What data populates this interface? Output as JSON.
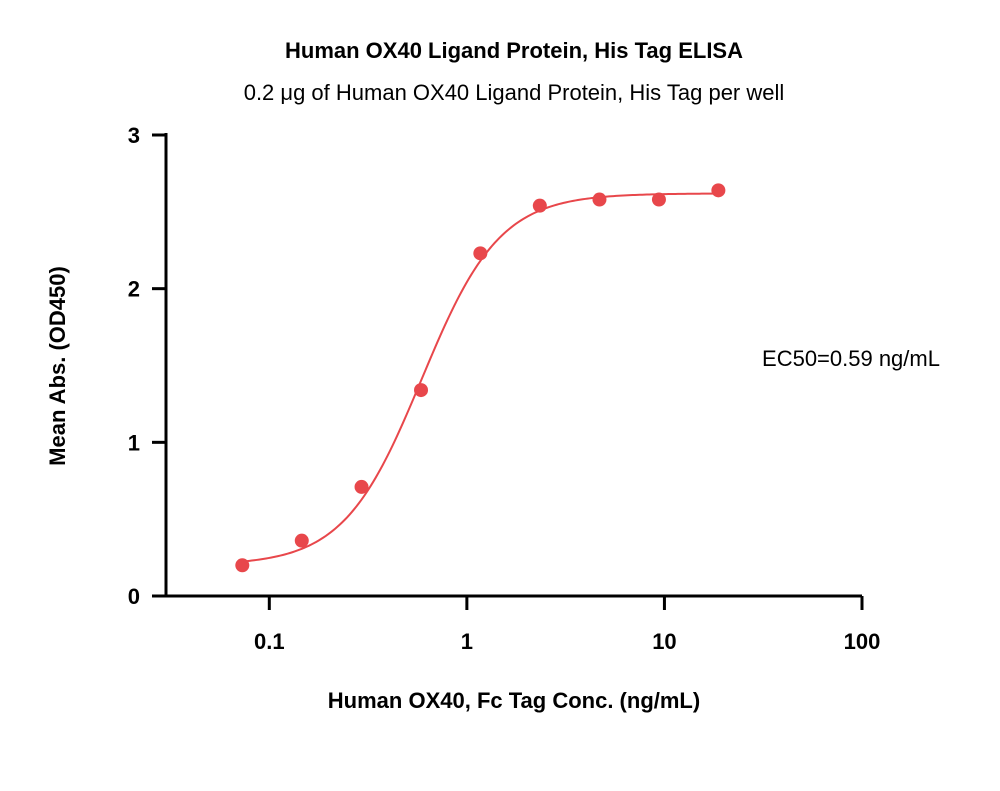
{
  "chart_data": {
    "type": "scatter",
    "title": "Human OX40 Ligand Protein, His Tag ELISA",
    "subtitle": "0.2 μg of Human OX40 Ligand Protein, His Tag per well",
    "xlabel": "Human OX40, Fc Tag Conc. (ng/mL)",
    "ylabel": "Mean Abs. (OD450)",
    "x_scale": "log",
    "xlim": [
      0.03,
      100
    ],
    "ylim": [
      0,
      3
    ],
    "x_ticks": [
      0.1,
      1,
      10,
      100
    ],
    "x_tick_labels": [
      "0.1",
      "1",
      "10",
      "100"
    ],
    "y_ticks": [
      0,
      1,
      2,
      3
    ],
    "y_tick_labels": [
      "0",
      "1",
      "2",
      "3"
    ],
    "grid": false,
    "series": [
      {
        "color": "#e8474b",
        "points": [
          {
            "x": 0.073,
            "y": 0.2
          },
          {
            "x": 0.146,
            "y": 0.36
          },
          {
            "x": 0.293,
            "y": 0.71
          },
          {
            "x": 0.586,
            "y": 1.34
          },
          {
            "x": 1.17,
            "y": 2.23
          },
          {
            "x": 2.34,
            "y": 2.54
          },
          {
            "x": 4.69,
            "y": 2.58
          },
          {
            "x": 9.38,
            "y": 2.58
          },
          {
            "x": 18.75,
            "y": 2.64
          }
        ],
        "fit": {
          "model": "4PL",
          "bottom": 0.2,
          "top": 2.62,
          "ec50": 0.59,
          "hill": 2.2
        }
      }
    ],
    "annotations": [
      "EC50=0.59 ng/mL"
    ]
  }
}
